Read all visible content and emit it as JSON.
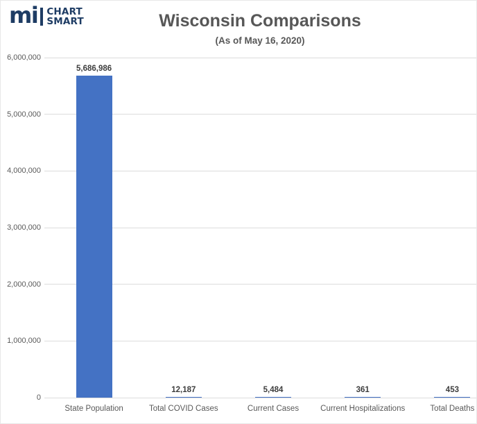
{
  "logo": {
    "mark": "mi",
    "line1": "CHART",
    "line2": "SMART",
    "color": "#1e3c64"
  },
  "header": {
    "title": "Wisconsin Comparisons",
    "subtitle": "(As of May 16, 2020)"
  },
  "chart_data": {
    "type": "bar",
    "title": "Wisconsin Comparisons",
    "subtitle": "(As of May 16, 2020)",
    "categories": [
      "State Population",
      "Total COVID Cases",
      "Current Cases",
      "Current Hospitalizations",
      "Total Deaths"
    ],
    "values": [
      5686986,
      12187,
      5484,
      361,
      453
    ],
    "value_labels": [
      "5,686,986",
      "12,187",
      "5,484",
      "361",
      "453"
    ],
    "xlabel": "",
    "ylabel": "",
    "ylim": [
      0,
      6000000
    ],
    "ytick_interval": 1000000,
    "ytick_labels": [
      "0",
      "1,000,000",
      "2,000,000",
      "3,000,000",
      "4,000,000",
      "5,000,000",
      "6,000,000"
    ],
    "grid": true,
    "legend": false,
    "bar_color": "#4472C4",
    "gridline_color": "#dcdcdc",
    "axis_label_color": "#595959",
    "value_label_color": "#3d3d3d"
  }
}
